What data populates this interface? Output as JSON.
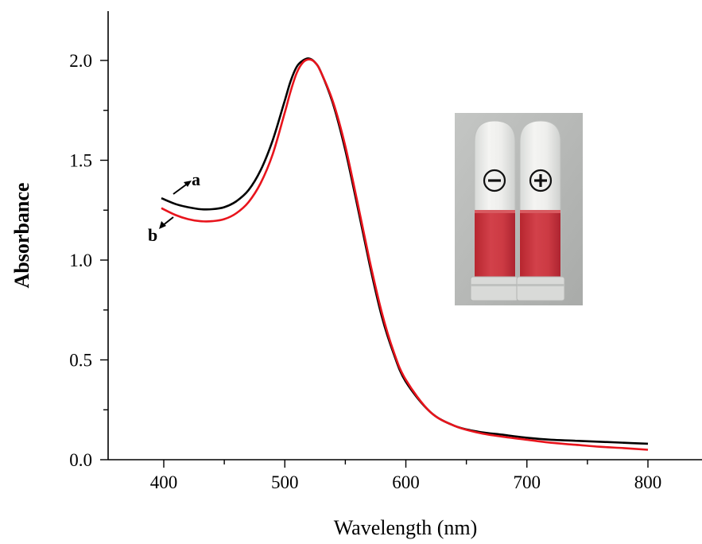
{
  "chart_data": {
    "type": "line",
    "title": "",
    "xlabel": "Wavelength (nm)",
    "ylabel": "Absorbance",
    "xlim": [
      350,
      850
    ],
    "ylim": [
      0,
      2.25
    ],
    "xticks": [
      400,
      500,
      600,
      700,
      800
    ],
    "xtick_labels": [
      "400",
      "500",
      "600",
      "700",
      "800"
    ],
    "yticks": [
      0.0,
      0.5,
      1.0,
      1.5,
      2.0
    ],
    "ytick_labels": [
      "0.0",
      "0.5",
      "1.0",
      "1.5",
      "2.0"
    ],
    "grid": false,
    "series": [
      {
        "label": "a",
        "color": "#000000",
        "x": [
          398,
          410,
          420,
          430,
          440,
          450,
          460,
          470,
          480,
          490,
          500,
          505,
          510,
          515,
          520,
          525,
          530,
          540,
          550,
          560,
          570,
          580,
          590,
          600,
          620,
          640,
          660,
          680,
          700,
          720,
          740,
          760,
          780,
          800
        ],
        "y": [
          1.31,
          1.28,
          1.265,
          1.255,
          1.255,
          1.265,
          1.295,
          1.35,
          1.45,
          1.6,
          1.8,
          1.9,
          1.97,
          2.0,
          2.01,
          1.99,
          1.94,
          1.78,
          1.55,
          1.27,
          0.98,
          0.72,
          0.53,
          0.39,
          0.24,
          0.17,
          0.14,
          0.125,
          0.11,
          0.1,
          0.095,
          0.09,
          0.085,
          0.08
        ]
      },
      {
        "label": "b",
        "color": "#e8141c",
        "x": [
          398,
          410,
          420,
          430,
          440,
          450,
          460,
          470,
          480,
          490,
          500,
          505,
          510,
          515,
          520,
          525,
          530,
          540,
          550,
          560,
          570,
          580,
          590,
          600,
          620,
          640,
          660,
          680,
          700,
          720,
          740,
          760,
          780,
          800
        ],
        "y": [
          1.26,
          1.225,
          1.205,
          1.195,
          1.195,
          1.205,
          1.235,
          1.29,
          1.385,
          1.53,
          1.74,
          1.85,
          1.94,
          1.99,
          2.005,
          1.99,
          1.94,
          1.79,
          1.57,
          1.29,
          1.0,
          0.74,
          0.54,
          0.4,
          0.24,
          0.17,
          0.135,
          0.115,
          0.1,
          0.085,
          0.075,
          0.065,
          0.058,
          0.05
        ]
      }
    ],
    "annotations": [
      {
        "text": "a",
        "series": "a"
      },
      {
        "text": "b",
        "series": "b"
      }
    ],
    "inset": {
      "description": "photo",
      "symbols": [
        "−",
        "+"
      ],
      "symbol_names": [
        "minus-icon",
        "plus-icon"
      ],
      "liquid_color": "#c8323a",
      "background_color": "#b4b6b4"
    }
  }
}
